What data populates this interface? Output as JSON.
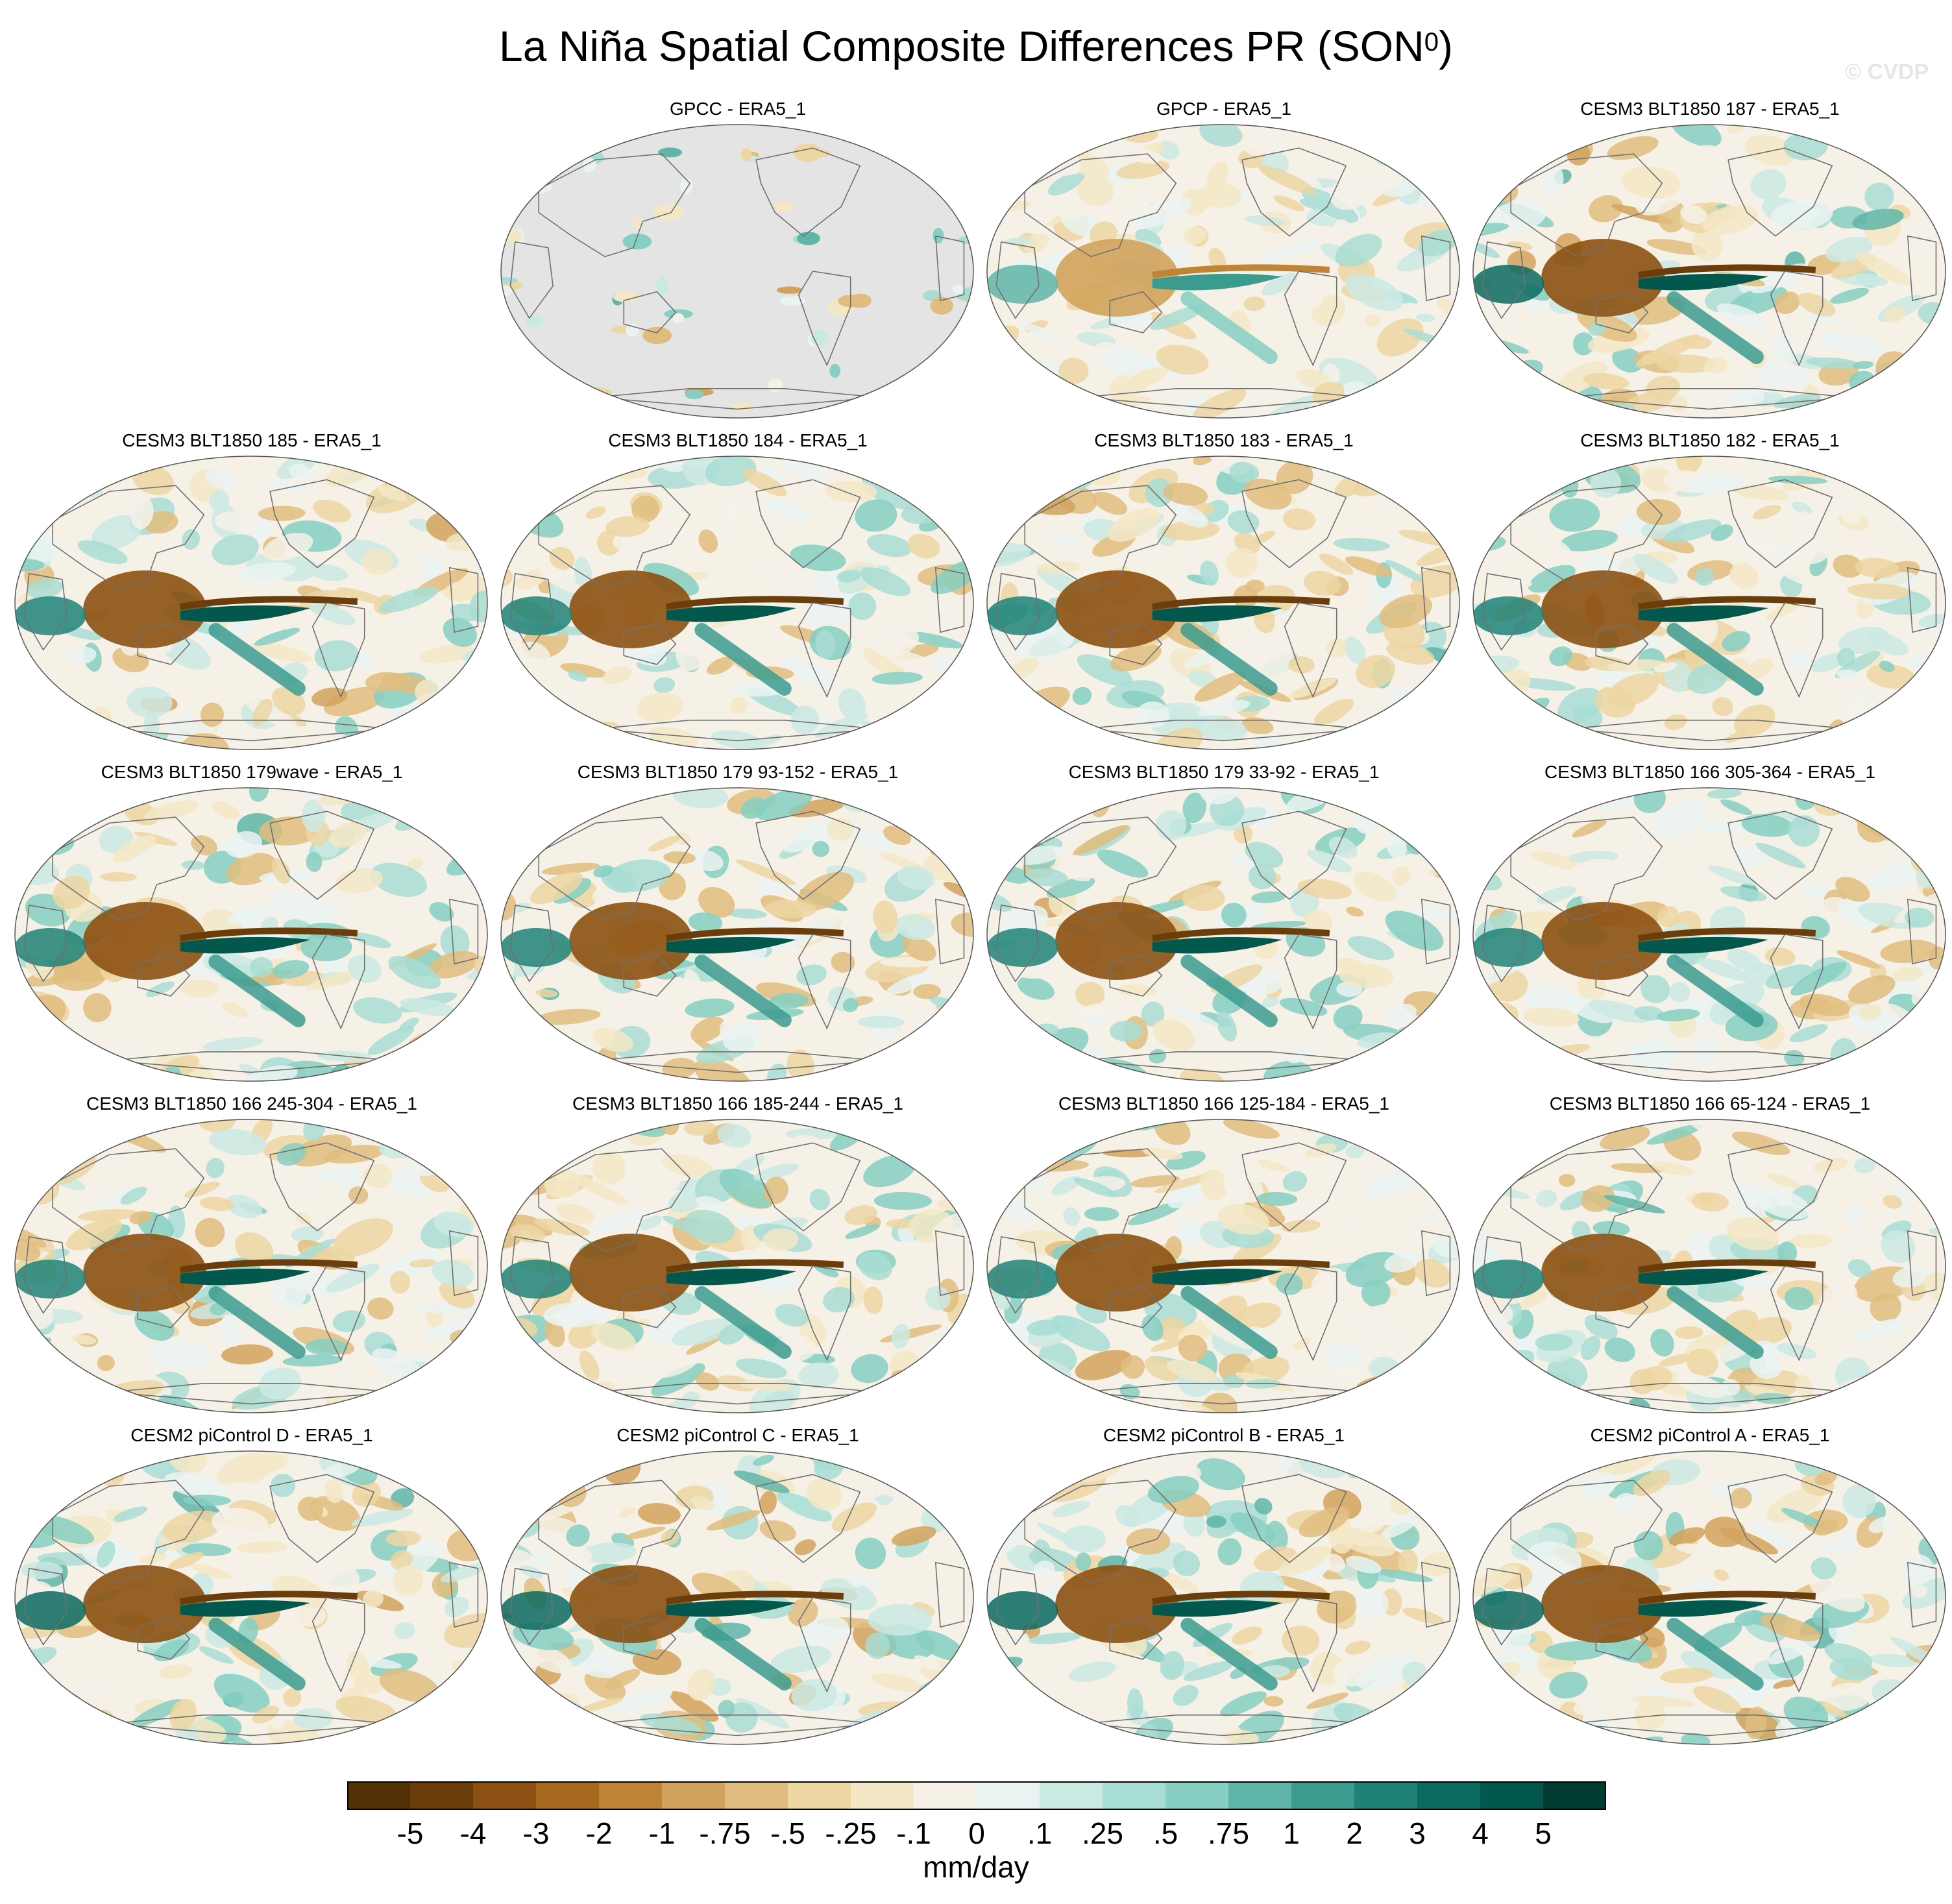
{
  "title": {
    "main": "La Niña Spatial Composite Differences PR (SON",
    "superscript": "0",
    "close": ")"
  },
  "watermark": "© CVDP",
  "panels": [
    {
      "label": "GPCC - ERA5_1",
      "seed": 3,
      "strength": 0.35,
      "land_only": true
    },
    {
      "label": "GPCP - ERA5_1",
      "seed": 7,
      "strength": 0.6,
      "land_only": false
    },
    {
      "label": "CESM3 BLT1850 187 - ERA5_1",
      "seed": 11,
      "strength": 1.0,
      "land_only": false
    },
    {
      "label": "CESM3 BLT1850 185 - ERA5_1",
      "seed": 13,
      "strength": 0.95,
      "land_only": false
    },
    {
      "label": "CESM3 BLT1850 184 - ERA5_1",
      "seed": 17,
      "strength": 0.95,
      "land_only": false
    },
    {
      "label": "CESM3 BLT1850 183 - ERA5_1",
      "seed": 19,
      "strength": 0.95,
      "land_only": false
    },
    {
      "label": "CESM3 BLT1850 182 - ERA5_1",
      "seed": 23,
      "strength": 0.95,
      "land_only": false
    },
    {
      "label": "CESM3 BLT1850 179wave - ERA5_1",
      "seed": 29,
      "strength": 0.95,
      "land_only": false
    },
    {
      "label": "CESM3 BLT1850 179 93-152 - ERA5_1",
      "seed": 31,
      "strength": 0.95,
      "land_only": false
    },
    {
      "label": "CESM3 BLT1850 179 33-92 - ERA5_1",
      "seed": 37,
      "strength": 0.95,
      "land_only": false
    },
    {
      "label": "CESM3 BLT1850 166 305-364 - ERA5_1",
      "seed": 41,
      "strength": 0.95,
      "land_only": false
    },
    {
      "label": "CESM3 BLT1850 166 245-304 - ERA5_1",
      "seed": 43,
      "strength": 0.95,
      "land_only": false
    },
    {
      "label": "CESM3 BLT1850 166 185-244 - ERA5_1",
      "seed": 47,
      "strength": 0.95,
      "land_only": false
    },
    {
      "label": "CESM3 BLT1850 166 125-184 - ERA5_1",
      "seed": 53,
      "strength": 0.95,
      "land_only": false
    },
    {
      "label": "CESM3 BLT1850 166 65-124 - ERA5_1",
      "seed": 59,
      "strength": 0.95,
      "land_only": false
    },
    {
      "label": "CESM2 piControl D - ERA5_1",
      "seed": 61,
      "strength": 1.0,
      "land_only": false
    },
    {
      "label": "CESM2 piControl C - ERA5_1",
      "seed": 67,
      "strength": 1.0,
      "land_only": false
    },
    {
      "label": "CESM2 piControl B - ERA5_1",
      "seed": 71,
      "strength": 1.0,
      "land_only": false
    },
    {
      "label": "CESM2 piControl A - ERA5_1",
      "seed": 73,
      "strength": 1.0,
      "land_only": false
    }
  ],
  "colorbar": {
    "colors": [
      "#543005",
      "#6b3d0a",
      "#8c5112",
      "#a8691f",
      "#bf8436",
      "#d2a35c",
      "#e0bd7e",
      "#ecd6a2",
      "#f3e7c5",
      "#f6f1e7",
      "#eaf3f1",
      "#cbe9e3",
      "#a8ddd3",
      "#86cfc2",
      "#5fb5a8",
      "#3c9b8f",
      "#1f8278",
      "#0b6a60",
      "#02584d",
      "#003c30"
    ],
    "labels": [
      "-5",
      "-4",
      "-3",
      "-2",
      "-1",
      "-.75",
      "-.5",
      "-.25",
      "-.1",
      "0",
      ".1",
      ".25",
      ".5",
      ".75",
      "1",
      "2",
      "3",
      "4",
      "5"
    ],
    "units": "mm/day"
  }
}
